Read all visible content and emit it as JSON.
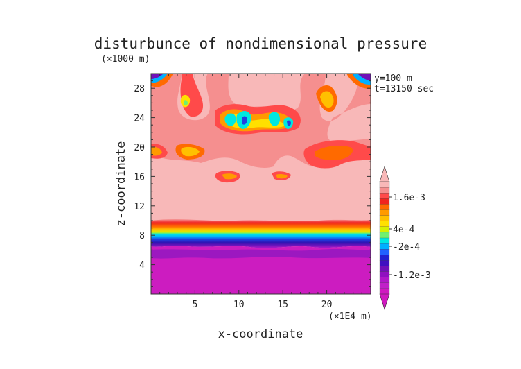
{
  "chart_data": {
    "type": "heatmap",
    "title": "disturbunce of nondimensional pressure",
    "ylabel": "z-coordinate",
    "xlabel": "x-coordinate",
    "y_unit": "(×1000 m)",
    "x_unit": "(×1E4 m)",
    "annotations": [
      "y=100 m",
      "t=13150 sec"
    ],
    "xlim": [
      0,
      25
    ],
    "ylim": [
      0,
      30
    ],
    "x_ticks": [
      5,
      10,
      15,
      20
    ],
    "y_ticks": [
      4,
      8,
      12,
      16,
      20,
      24,
      28
    ],
    "x_tick_labels": [
      "5",
      "10",
      "15",
      "20"
    ],
    "y_tick_labels": [
      "4",
      "8",
      "12",
      "16",
      "20",
      "24",
      "28"
    ],
    "colorbar": {
      "tick_labels": [
        "1.6e-3",
        "4e-4",
        "-2e-4",
        "-1.2e-3"
      ],
      "tick_values": [
        0.0016,
        0.0004,
        -0.0002,
        -0.0012
      ],
      "colors_top_to_bottom": [
        "#f8b8b8",
        "#f58f8f",
        "#ff4a4a",
        "#f0241f",
        "#ff6a00",
        "#ff9a00",
        "#ffc000",
        "#ffe000",
        "#d6f000",
        "#70f070",
        "#00e8e0",
        "#00b0ff",
        "#2060ff",
        "#2020d0",
        "#4010c0",
        "#7010b8",
        "#9010c0",
        "#b018c8",
        "#c020c8",
        "#d018c0"
      ]
    },
    "regions": [
      {
        "level": "high positive (~1.6e-3)",
        "z_range": [
          10,
          30
        ],
        "x_range": [
          0,
          25
        ],
        "color": "#f8b8b8"
      },
      {
        "level": "transition band",
        "z_range": [
          7,
          10
        ],
        "x_range": [
          0,
          25
        ],
        "color": "gradient"
      },
      {
        "level": "negative (~-1.2e-3 and below)",
        "z_range": [
          0,
          7
        ],
        "x_range": [
          0,
          25
        ],
        "color": "#d020c0"
      },
      {
        "level": "local minima",
        "points": [
          [
            8.5,
            23.2
          ],
          [
            10.5,
            23.5
          ],
          [
            14.5,
            23.8
          ],
          [
            16,
            23
          ]
        ],
        "color": "#00b0ff"
      }
    ]
  }
}
